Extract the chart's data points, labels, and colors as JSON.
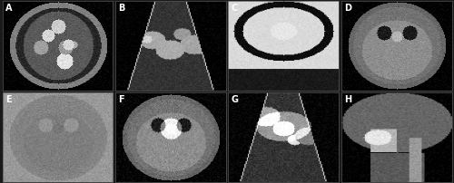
{
  "figure_width": 5.0,
  "figure_height": 2.02,
  "dpi": 100,
  "nrows": 2,
  "ncols": 4,
  "labels": [
    "A",
    "B",
    "C",
    "D",
    "E",
    "F",
    "G",
    "H"
  ],
  "label_color": "white",
  "label_fontsize": 7,
  "background_color": "#1a1a1a",
  "outer_border_color": "#555555",
  "outer_border_linewidth": 0.5,
  "hspace": 0.02,
  "wspace": 0.02
}
